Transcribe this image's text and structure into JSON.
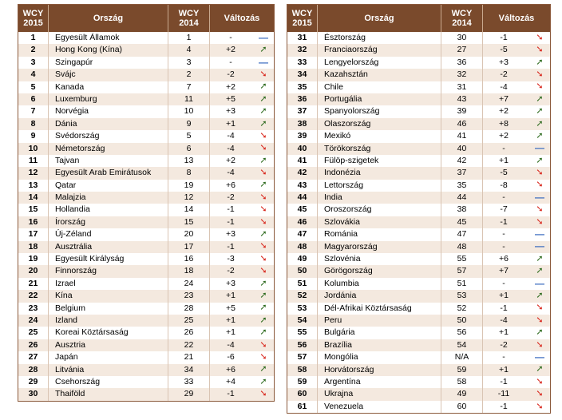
{
  "headers": {
    "rank": "WCY\n2015",
    "country": "Ország",
    "prev": "WCY\n2014",
    "change": "Változás"
  },
  "colors": {
    "header_bg": "#7a4a2c",
    "row_alt": "#f4e9df",
    "up": "#2e6b1f",
    "down": "#d8261c",
    "same": "#3a6bbf"
  },
  "left": [
    {
      "rank": "1",
      "country": "Egyesült Államok",
      "prev": "1",
      "change": "-",
      "dir": "same"
    },
    {
      "rank": "2",
      "country": "Hong Kong (Kína)",
      "prev": "4",
      "change": "+2",
      "dir": "up"
    },
    {
      "rank": "3",
      "country": "Szingapúr",
      "prev": "3",
      "change": "-",
      "dir": "same"
    },
    {
      "rank": "4",
      "country": "Svájc",
      "prev": "2",
      "change": "-2",
      "dir": "down"
    },
    {
      "rank": "5",
      "country": "Kanada",
      "prev": "7",
      "change": "+2",
      "dir": "up"
    },
    {
      "rank": "6",
      "country": "Luxemburg",
      "prev": "11",
      "change": "+5",
      "dir": "up"
    },
    {
      "rank": "7",
      "country": "Norvégia",
      "prev": "10",
      "change": "+3",
      "dir": "up"
    },
    {
      "rank": "8",
      "country": "Dánia",
      "prev": "9",
      "change": "+1",
      "dir": "up"
    },
    {
      "rank": "9",
      "country": "Svédország",
      "prev": "5",
      "change": "-4",
      "dir": "down"
    },
    {
      "rank": "10",
      "country": "Németország",
      "prev": "6",
      "change": "-4",
      "dir": "down"
    },
    {
      "rank": "11",
      "country": "Tajvan",
      "prev": "13",
      "change": "+2",
      "dir": "up"
    },
    {
      "rank": "12",
      "country": "Egyesült Arab Emirátusok",
      "prev": "8",
      "change": "-4",
      "dir": "down"
    },
    {
      "rank": "13",
      "country": "Qatar",
      "prev": "19",
      "change": "+6",
      "dir": "up"
    },
    {
      "rank": "14",
      "country": "Malajzia",
      "prev": "12",
      "change": "-2",
      "dir": "down"
    },
    {
      "rank": "15",
      "country": "Hollandia",
      "prev": "14",
      "change": "-1",
      "dir": "down"
    },
    {
      "rank": "16",
      "country": "Írország",
      "prev": "15",
      "change": "-1",
      "dir": "down"
    },
    {
      "rank": "17",
      "country": "Új-Zéland",
      "prev": "20",
      "change": "+3",
      "dir": "up"
    },
    {
      "rank": "18",
      "country": "Ausztrália",
      "prev": "17",
      "change": "-1",
      "dir": "down"
    },
    {
      "rank": "19",
      "country": "Egyesült Királyság",
      "prev": "16",
      "change": "-3",
      "dir": "down"
    },
    {
      "rank": "20",
      "country": "Finnország",
      "prev": "18",
      "change": "-2",
      "dir": "down"
    },
    {
      "rank": "21",
      "country": "Izrael",
      "prev": "24",
      "change": "+3",
      "dir": "up"
    },
    {
      "rank": "22",
      "country": "Kína",
      "prev": "23",
      "change": "+1",
      "dir": "up"
    },
    {
      "rank": "23",
      "country": "Belgium",
      "prev": "28",
      "change": "+5",
      "dir": "up"
    },
    {
      "rank": "24",
      "country": "Izland",
      "prev": "25",
      "change": "+1",
      "dir": "up"
    },
    {
      "rank": "25",
      "country": "Koreai Köztársaság",
      "prev": "26",
      "change": "+1",
      "dir": "up"
    },
    {
      "rank": "26",
      "country": "Ausztria",
      "prev": "22",
      "change": "-4",
      "dir": "down"
    },
    {
      "rank": "27",
      "country": "Japán",
      "prev": "21",
      "change": "-6",
      "dir": "down"
    },
    {
      "rank": "28",
      "country": "Litvánia",
      "prev": "34",
      "change": "+6",
      "dir": "up"
    },
    {
      "rank": "29",
      "country": "Csehország",
      "prev": "33",
      "change": "+4",
      "dir": "up"
    },
    {
      "rank": "30",
      "country": "Thaiföld",
      "prev": "29",
      "change": "-1",
      "dir": "down"
    }
  ],
  "right": [
    {
      "rank": "31",
      "country": "Észtország",
      "prev": "30",
      "change": "-1",
      "dir": "down"
    },
    {
      "rank": "32",
      "country": "Franciaország",
      "prev": "27",
      "change": "-5",
      "dir": "down"
    },
    {
      "rank": "33",
      "country": "Lengyelország",
      "prev": "36",
      "change": "+3",
      "dir": "up"
    },
    {
      "rank": "34",
      "country": "Kazahsztán",
      "prev": "32",
      "change": "-2",
      "dir": "down"
    },
    {
      "rank": "35",
      "country": "Chile",
      "prev": "31",
      "change": "-4",
      "dir": "down"
    },
    {
      "rank": "36",
      "country": "Portugália",
      "prev": "43",
      "change": "+7",
      "dir": "up"
    },
    {
      "rank": "37",
      "country": "Spanyolország",
      "prev": "39",
      "change": "+2",
      "dir": "up"
    },
    {
      "rank": "38",
      "country": "Olaszország",
      "prev": "46",
      "change": "+8",
      "dir": "up"
    },
    {
      "rank": "39",
      "country": "Mexikó",
      "prev": "41",
      "change": "+2",
      "dir": "up"
    },
    {
      "rank": "40",
      "country": "Törökország",
      "prev": "40",
      "change": "-",
      "dir": "same"
    },
    {
      "rank": "41",
      "country": "Fülöp-szigetek",
      "prev": "42",
      "change": "+1",
      "dir": "up"
    },
    {
      "rank": "42",
      "country": "Indonézia",
      "prev": "37",
      "change": "-5",
      "dir": "down"
    },
    {
      "rank": "43",
      "country": "Lettország",
      "prev": "35",
      "change": "-8",
      "dir": "down"
    },
    {
      "rank": "44",
      "country": "India",
      "prev": "44",
      "change": "-",
      "dir": "same"
    },
    {
      "rank": "45",
      "country": "Oroszország",
      "prev": "38",
      "change": "-7",
      "dir": "down"
    },
    {
      "rank": "46",
      "country": "Szlovákia",
      "prev": "45",
      "change": "-1",
      "dir": "down"
    },
    {
      "rank": "47",
      "country": "Románia",
      "prev": "47",
      "change": "-",
      "dir": "same"
    },
    {
      "rank": "48",
      "country": "Magyarország",
      "prev": "48",
      "change": "-",
      "dir": "same"
    },
    {
      "rank": "49",
      "country": "Szlovénia",
      "prev": "55",
      "change": "+6",
      "dir": "up"
    },
    {
      "rank": "50",
      "country": "Görögország",
      "prev": "57",
      "change": "+7",
      "dir": "up"
    },
    {
      "rank": "51",
      "country": "Kolumbia",
      "prev": "51",
      "change": "-",
      "dir": "same"
    },
    {
      "rank": "52",
      "country": "Jordánia",
      "prev": "53",
      "change": "+1",
      "dir": "up"
    },
    {
      "rank": "53",
      "country": "Dél-Afrikai Köztársaság",
      "prev": "52",
      "change": "-1",
      "dir": "down"
    },
    {
      "rank": "54",
      "country": "Peru",
      "prev": "50",
      "change": "-4",
      "dir": "down"
    },
    {
      "rank": "55",
      "country": "Bulgária",
      "prev": "56",
      "change": "+1",
      "dir": "up"
    },
    {
      "rank": "56",
      "country": "Brazília",
      "prev": "54",
      "change": "-2",
      "dir": "down"
    },
    {
      "rank": "57",
      "country": "Mongólia",
      "prev": "N/A",
      "change": "-",
      "dir": "same"
    },
    {
      "rank": "58",
      "country": "Horvátország",
      "prev": "59",
      "change": "+1",
      "dir": "up"
    },
    {
      "rank": "59",
      "country": "Argentína",
      "prev": "58",
      "change": "-1",
      "dir": "down"
    },
    {
      "rank": "60",
      "country": "Ukrajna",
      "prev": "49",
      "change": "-11",
      "dir": "down"
    },
    {
      "rank": "61",
      "country": "Venezuela",
      "prev": "60",
      "change": "-1",
      "dir": "down"
    }
  ]
}
